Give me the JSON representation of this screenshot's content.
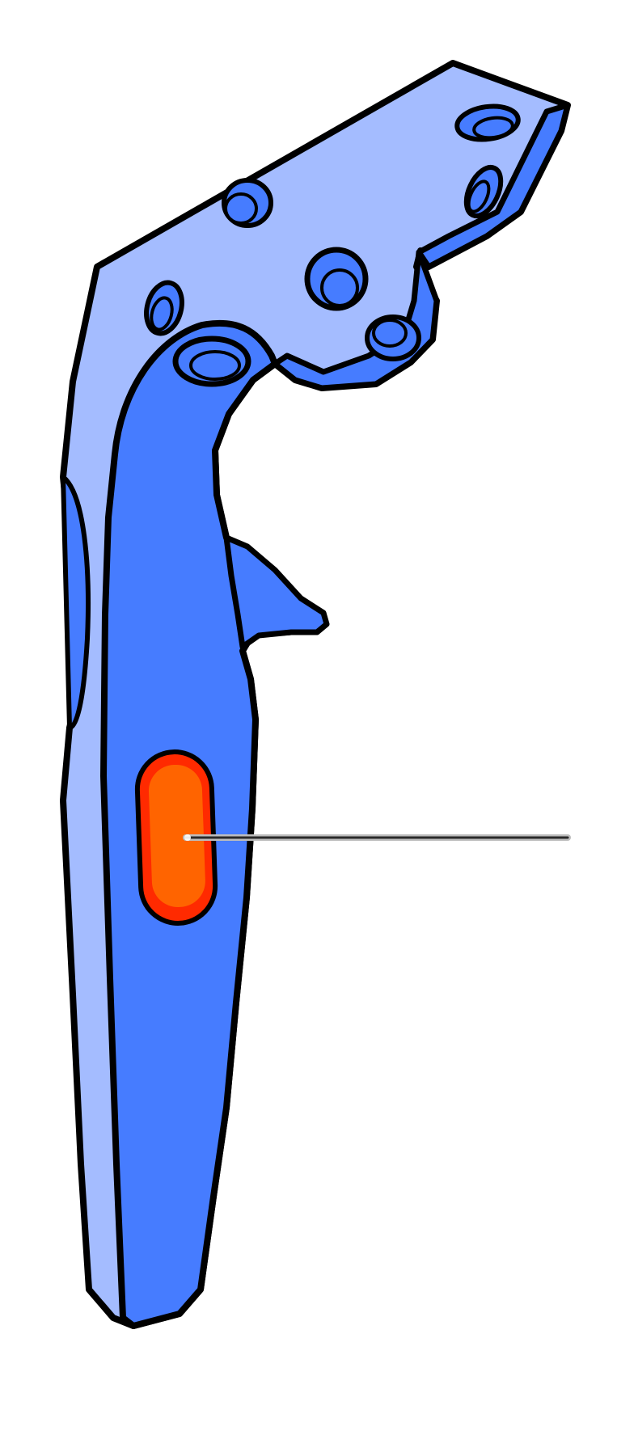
{
  "diagram": {
    "subject": "controller-grip",
    "highlighted_part": "grip-button",
    "callout_label": "",
    "colors": {
      "background": "#ffffff",
      "outline": "#000000",
      "body_light": "#a4bcff",
      "body_main": "#467cff",
      "button_fill": "#ff6400",
      "button_rim": "#ff2a00",
      "leader_line": "#2a2a2a"
    }
  }
}
